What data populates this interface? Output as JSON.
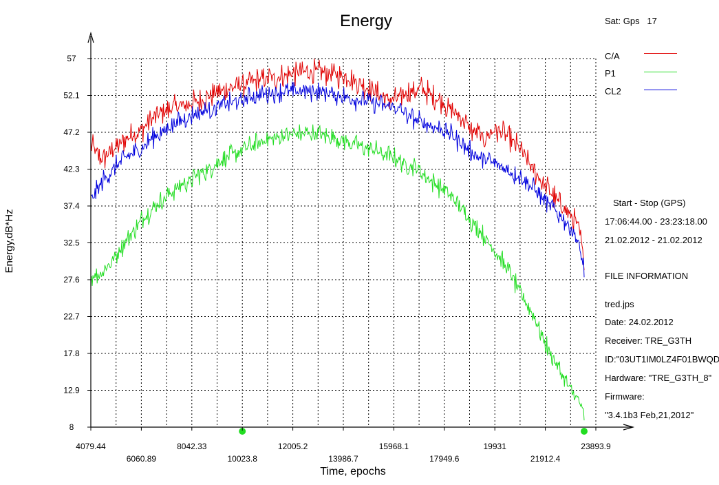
{
  "satellite": {
    "label": "Sat: Gps",
    "number": "17"
  },
  "legend": [
    {
      "name": "C/A",
      "color": "#e00000"
    },
    {
      "name": "P1",
      "color": "#22dd22"
    },
    {
      "name": "CL2",
      "color": "#0000dd"
    }
  ],
  "session": {
    "heading": "Start  -  Stop  (GPS)",
    "times": "17:06:44.00 - 23:23:18.00",
    "dates": "21.02.2012 - 21.02.2012"
  },
  "file_info": {
    "heading": "FILE INFORMATION",
    "filename": "tred.jps",
    "date": "Date: 24.02.2012",
    "receiver": "Receiver: TRE_G3TH",
    "id": "ID:\"03UT1IM0LZ4F01BWQD",
    "hardware": "Hardware: \"TRE_G3TH_8\"",
    "firmware_label": "Firmware:",
    "firmware_value": "\"3.4.1b3 Feb,21,2012\""
  },
  "chart_data": {
    "type": "line",
    "title": "Energy",
    "xlabel": "Time, epochs",
    "ylabel": "Energy,dB*Hz",
    "xlim": [
      4079.44,
      23893.9
    ],
    "ylim": [
      8,
      57
    ],
    "x_ticks": [
      "4079.44",
      "6060.89",
      "8042.33",
      "10023.8",
      "12005.2",
      "13986.7",
      "15968.1",
      "17949.6",
      "19931",
      "21912.4",
      "23893.9"
    ],
    "y_ticks": [
      "57",
      "52.1",
      "47.2",
      "42.3",
      "37.4",
      "32.5",
      "27.6",
      "22.7",
      "17.8",
      "12.9",
      "8"
    ],
    "grid": true,
    "markers_on_x_axis": [
      10023.8,
      23435
    ],
    "series": [
      {
        "name": "C/A",
        "color": "#e00000",
        "x": [
          4079.44,
          4500,
          5000,
          5500,
          6060.89,
          6500,
          7000,
          7500,
          8042.33,
          8500,
          9000,
          9500,
          10023.8,
          10500,
          11000,
          11500,
          12005.2,
          12500,
          13000,
          13500,
          13986.7,
          14500,
          15000,
          15500,
          15968.1,
          16500,
          17000,
          17500,
          17949.6,
          18500,
          19000,
          19500,
          19931,
          20500,
          21000,
          21500,
          21912.4,
          22400,
          22800,
          23100,
          23300,
          23435
        ],
        "y": [
          45.5,
          43.5,
          45.0,
          46.5,
          47.5,
          49.0,
          50.0,
          50.5,
          51.0,
          51.5,
          52.5,
          53.0,
          53.5,
          54.0,
          54.3,
          54.6,
          55.0,
          55.2,
          55.3,
          55.0,
          54.6,
          54.0,
          53.0,
          52.0,
          51.5,
          52.5,
          53.0,
          52.0,
          51.0,
          49.5,
          47.5,
          46.5,
          47.5,
          46.5,
          44.5,
          42.0,
          40.0,
          38.0,
          36.5,
          35.5,
          33.0,
          30.0
        ],
        "noise": 1.2
      },
      {
        "name": "P1",
        "color": "#22dd22",
        "x": [
          4079.44,
          4500,
          5000,
          5500,
          6060.89,
          6500,
          7000,
          7500,
          8042.33,
          8500,
          9000,
          9500,
          10023.8,
          10500,
          11000,
          11500,
          12005.2,
          12500,
          13000,
          13500,
          13986.7,
          14500,
          15000,
          15500,
          15968.1,
          16500,
          17000,
          17500,
          17949.6,
          18500,
          19000,
          19500,
          19931,
          20500,
          21000,
          21500,
          21912.4,
          22400,
          22800,
          23100,
          23300,
          23435
        ],
        "y": [
          28.0,
          28.5,
          30.5,
          33.0,
          35.5,
          37.0,
          38.5,
          40.0,
          41.0,
          42.0,
          43.0,
          44.0,
          44.8,
          45.5,
          46.2,
          46.6,
          46.9,
          47.0,
          46.9,
          46.6,
          46.2,
          45.6,
          45.0,
          44.4,
          43.8,
          43.0,
          42.0,
          40.5,
          39.5,
          37.5,
          35.5,
          33.5,
          31.5,
          28.5,
          25.5,
          22.5,
          19.0,
          16.0,
          13.5,
          12.0,
          11.0,
          9.5
        ],
        "noise": 1.0
      },
      {
        "name": "CL2",
        "color": "#0000dd",
        "x": [
          4079.44,
          4500,
          5000,
          5500,
          6060.89,
          6500,
          7000,
          7500,
          8042.33,
          8500,
          9000,
          9500,
          10023.8,
          10500,
          11000,
          11500,
          12005.2,
          12500,
          13000,
          13500,
          13986.7,
          14500,
          15000,
          15500,
          15968.1,
          16500,
          17000,
          17500,
          17949.6,
          18500,
          19000,
          19500,
          19931,
          20500,
          21000,
          21500,
          21912.4,
          22400,
          22800,
          23100,
          23300,
          23435
        ],
        "y": [
          38.0,
          40.5,
          42.5,
          44.0,
          45.0,
          46.5,
          47.5,
          48.5,
          49.5,
          50.0,
          50.5,
          51.0,
          51.5,
          52.0,
          52.3,
          52.5,
          52.6,
          52.7,
          52.6,
          52.3,
          52.0,
          51.5,
          51.2,
          50.8,
          50.5,
          49.5,
          48.5,
          48.0,
          47.5,
          46.0,
          44.5,
          43.5,
          43.0,
          42.0,
          41.0,
          39.5,
          38.0,
          36.5,
          35.0,
          33.5,
          31.0,
          29.0
        ],
        "noise": 1.0
      }
    ]
  }
}
